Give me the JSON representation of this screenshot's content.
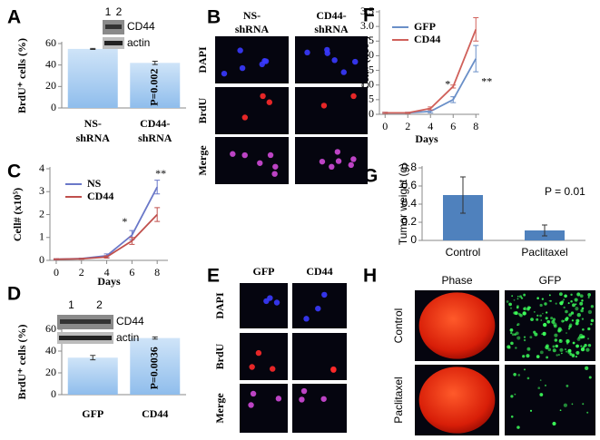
{
  "chart_data": [
    {
      "type": "bar",
      "panel": "A",
      "ylabel": "BrdU⁺ cells (%)",
      "categories": [
        [
          "NS-",
          "shRNA"
        ],
        [
          "CD44-",
          "shRNA"
        ]
      ],
      "values": [
        55,
        42
      ],
      "errors": [
        0.5,
        1.5
      ],
      "ylim": [
        0,
        60
      ],
      "yticks": [
        0,
        20,
        40,
        60
      ],
      "annotation": "P=0.002",
      "blot": {
        "lanes": [
          "1",
          "2"
        ],
        "bands": [
          "CD44",
          "actin"
        ]
      }
    },
    {
      "type": "line",
      "panel": "C",
      "ylabel": "Cell# (x10⁵)",
      "xlabel": "Days",
      "x": [
        0,
        2,
        4,
        6,
        8
      ],
      "series": [
        {
          "name": "NS",
          "color": "#6a78c8",
          "values": [
            0.05,
            0.08,
            0.2,
            1.1,
            3.2
          ],
          "errors": [
            0.02,
            0.02,
            0.08,
            0.2,
            0.3
          ]
        },
        {
          "name": "CD44",
          "color": "#c0504d",
          "values": [
            0.05,
            0.07,
            0.15,
            0.85,
            2.0
          ],
          "errors": [
            0.02,
            0.02,
            0.05,
            0.15,
            0.3
          ]
        }
      ],
      "xlim": [
        -0.5,
        8.85
      ],
      "ylim": [
        0,
        4
      ],
      "xticks": [
        0,
        2,
        4,
        6,
        8
      ],
      "yticks": [
        0,
        1,
        2,
        3,
        4
      ],
      "annotations": [
        "*",
        "**"
      ]
    },
    {
      "type": "bar",
      "panel": "D",
      "ylabel": "BrdU⁺ cells (%)",
      "categories": [
        "GFP",
        "CD44"
      ],
      "values": [
        34,
        52
      ],
      "errors": [
        2,
        1
      ],
      "ylim": [
        0,
        60
      ],
      "yticks": [
        0,
        20,
        40,
        60
      ],
      "annotation": "P=0.0036",
      "blot": {
        "lanes": [
          "1",
          "2"
        ],
        "bands": [
          "CD44",
          "actin"
        ]
      }
    },
    {
      "type": "line",
      "panel": "F",
      "ylabel": "Cell# (x10⁵)",
      "xlabel": "Days",
      "x": [
        0,
        2,
        4,
        6,
        8
      ],
      "series": [
        {
          "name": "GFP",
          "color": "#6a8fc8",
          "values": [
            0.05,
            0.05,
            0.1,
            0.5,
            1.9
          ],
          "errors": [
            0.02,
            0.02,
            0.05,
            0.1,
            0.45
          ]
        },
        {
          "name": "CD44",
          "color": "#d0605a",
          "values": [
            0.05,
            0.05,
            0.2,
            0.95,
            2.9
          ],
          "errors": [
            0.02,
            0.02,
            0.05,
            0.05,
            0.4
          ]
        }
      ],
      "xlim": [
        -0.5,
        8.3
      ],
      "ylim": [
        0,
        3.5
      ],
      "xticks": [
        0,
        2,
        4,
        6,
        8
      ],
      "yticks": [
        0,
        0.5,
        {
          "value": 1,
          "label": "1.0"
        },
        1.5,
        {
          "value": 2,
          "label": "2.0"
        },
        2.5,
        {
          "value": 3,
          "label": "3.0"
        },
        3.5
      ],
      "annotations": [
        "*",
        "**"
      ]
    },
    {
      "type": "bar",
      "panel": "G",
      "ylabel": "Tumor weight (g)",
      "categories": [
        "Control",
        "Paclitaxel"
      ],
      "values": [
        0.5,
        0.11
      ],
      "errors": [
        0.2,
        0.06
      ],
      "color": "#4f81bd",
      "ylim": [
        0,
        0.8
      ],
      "yticks": [
        0,
        0.2,
        0.4,
        0.6,
        0.8
      ],
      "annotation": "P = 0.01"
    }
  ],
  "image_panels": [
    {
      "panel": "B",
      "columns": [
        [
          "NS-",
          "shRNA"
        ],
        [
          "CD44-",
          "shRNA"
        ]
      ],
      "rows": [
        "DAPI",
        "BrdU",
        "Merge"
      ]
    },
    {
      "panel": "E",
      "columns": [
        [
          "GFP"
        ],
        [
          "CD44"
        ]
      ],
      "rows": [
        "DAPI",
        "BrdU",
        "Merge"
      ]
    },
    {
      "panel": "H",
      "columns": [
        [
          "Phase"
        ],
        [
          "GFP"
        ]
      ],
      "rows": [
        "Control",
        "Paclitaxel"
      ]
    }
  ]
}
